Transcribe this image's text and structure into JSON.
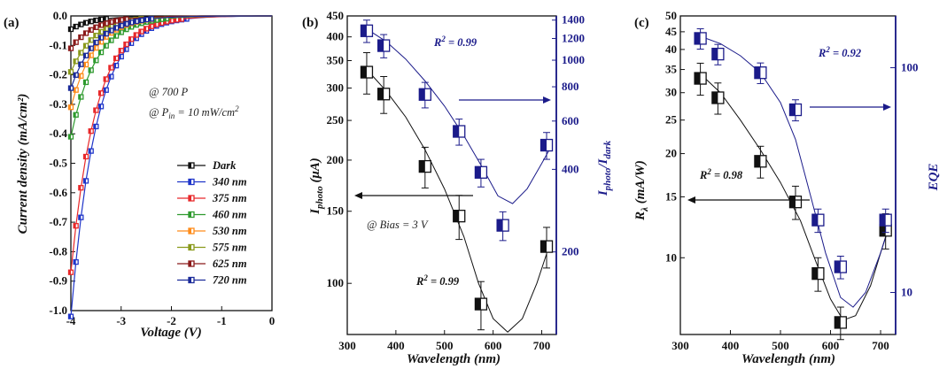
{
  "chart_data": [
    {
      "panel": "(a)",
      "type": "line",
      "xlabel": "Voltage (V)",
      "ylabel": "Current density (mA/cm²)",
      "xlim": [
        -4,
        0
      ],
      "ylim": [
        -1.0,
        0.0
      ],
      "xticks": [
        "-4",
        "-3",
        "-2",
        "-1",
        "0"
      ],
      "yticks": [
        "0.0",
        "-0.1",
        "-0.2",
        "-0.3",
        "-0.4",
        "-0.5",
        "-0.6",
        "-0.7",
        "-0.8",
        "-0.9",
        "-1.0"
      ],
      "annotations": [
        "@ 700 P",
        "@ P",
        "in",
        " = 10 mW/cm",
        "2"
      ],
      "legend_position": "lower-right",
      "series": [
        {
          "name": "Dark",
          "color": "#111111",
          "jmin": -0.045,
          "onset": 2.2
        },
        {
          "name": "340 nm",
          "color": "#1f35c9",
          "jmin": -1.02,
          "onset": 2.0
        },
        {
          "name": "375 nm",
          "color": "#e8282a",
          "jmin": -0.87,
          "onset": 2.0
        },
        {
          "name": "460 nm",
          "color": "#2e9a2e",
          "jmin": -0.41,
          "onset": 2.0
        },
        {
          "name": "530 nm",
          "color": "#ff8c1a",
          "jmin": -0.31,
          "onset": 2.1
        },
        {
          "name": "575 nm",
          "color": "#8a9a1c",
          "jmin": -0.19,
          "onset": 2.1
        },
        {
          "name": "625 nm",
          "color": "#8b1a1a",
          "jmin": -0.11,
          "onset": 2.1
        },
        {
          "name": "720 nm",
          "color": "#1b2b9a",
          "jmin": -0.245,
          "onset": 2.0
        }
      ],
      "x_samples": [
        -4.0,
        -3.9,
        -3.8,
        -3.7,
        -3.6,
        -3.5,
        -3.4,
        -3.3,
        -3.2,
        -3.1,
        -3.0,
        -2.9,
        -2.8,
        -2.7,
        -2.6,
        -2.5,
        -2.4,
        -2.3,
        -2.2,
        -2.1,
        -2.0,
        -1.9,
        -1.8,
        -1.7,
        -1.6,
        -1.5,
        -1.4,
        -1.3,
        -1.2,
        -1.1,
        -1.0,
        -0.9,
        -0.8,
        -0.7,
        -0.6,
        -0.5,
        -0.4,
        -0.3,
        -0.2,
        -0.1,
        0.0
      ]
    },
    {
      "panel": "(b)",
      "type": "scatter",
      "xlabel": "Wavelength (nm)",
      "ylabel_left": "I_photo (μA)",
      "ylabel_right": "I_photo/I_dark",
      "xlim": [
        300,
        730
      ],
      "ylim_left": [
        75,
        450
      ],
      "ylim_right": [
        100,
        1450
      ],
      "scale": "log",
      "xticks": [
        "300",
        "400",
        "500",
        "600",
        "700"
      ],
      "yticks_left": [
        "100",
        "150",
        "200",
        "250",
        "300",
        "350",
        "400",
        "450"
      ],
      "yticks_right": [
        "200",
        "400",
        "600",
        "800",
        "1000",
        "1200",
        "1400"
      ],
      "annotations": [
        "R",
        "2",
        " = 0.99",
        "R",
        "2",
        " = 0.99",
        "@ Bias = 3 V"
      ],
      "series": [
        {
          "name": "I_photo",
          "axis": "left",
          "color": "#111111",
          "x": [
            340,
            375,
            460,
            530,
            575,
            710
          ],
          "y": [
            328,
            290,
            193,
            146,
            89,
            123
          ],
          "err": [
            38,
            30,
            22,
            18,
            12,
            14
          ]
        },
        {
          "name": "I_photo/I_dark",
          "axis": "right",
          "color": "#1b1b8a",
          "x": [
            340,
            375,
            460,
            530,
            575,
            620,
            710
          ],
          "y": [
            1280,
            1130,
            750,
            550,
            390,
            250,
            490
          ],
          "err": [
            120,
            110,
            80,
            60,
            45,
            30,
            55
          ]
        }
      ]
    },
    {
      "panel": "(c)",
      "type": "scatter",
      "xlabel": "Wavelength (nm)",
      "ylabel_left": "R_λ (mA/W)",
      "ylabel_right": "EQE",
      "xlim": [
        300,
        730
      ],
      "ylim_left": [
        6,
        50
      ],
      "ylim_right": [
        6.5,
        170
      ],
      "scale": "log",
      "xticks": [
        "300",
        "400",
        "500",
        "600",
        "700"
      ],
      "yticks_left": [
        "10",
        "15",
        "20",
        "25",
        "30",
        "35",
        "40",
        "45",
        "50"
      ],
      "yticks_right": [
        "10",
        "100"
      ],
      "annotations": [
        "R",
        "2",
        " = 0.92",
        "R",
        "2",
        " = 0.98"
      ],
      "series": [
        {
          "name": "R_λ",
          "axis": "left",
          "color": "#111111",
          "x": [
            340,
            375,
            460,
            530,
            575,
            620,
            710
          ],
          "y": [
            33,
            29,
            19,
            14.5,
            9,
            6.5,
            12
          ],
          "err": [
            3.5,
            3,
            2,
            1.6,
            1.0,
            0.7,
            1.4
          ]
        },
        {
          "name": "EQE",
          "axis": "right",
          "color": "#1b1b8a",
          "x": [
            340,
            375,
            460,
            530,
            575,
            620,
            710
          ],
          "y": [
            135,
            115,
            95,
            65,
            21,
            13,
            21
          ],
          "err": [
            14,
            12,
            10,
            7,
            2.5,
            1.5,
            2.5
          ]
        }
      ]
    }
  ]
}
